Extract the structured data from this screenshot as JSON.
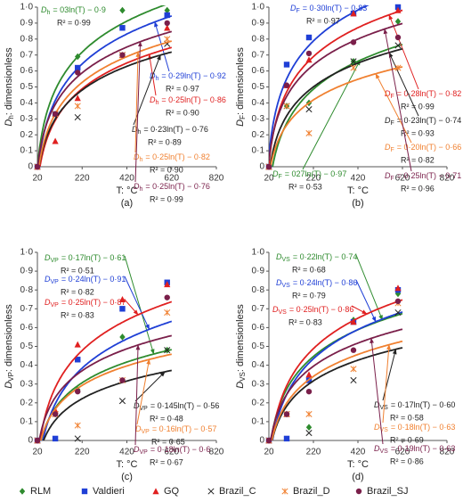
{
  "chart_data": [
    {
      "type": "scatter",
      "panel_label": "(a)",
      "xlabel": "T: °C",
      "ylabel_var": "D",
      "ylabel_sub": "h",
      "ylabel_rest": ": dimensionless",
      "xlim": [
        20,
        820
      ],
      "xticks": [
        20,
        220,
        420,
        620,
        820
      ],
      "ylim": [
        0,
        1
      ],
      "yticks": [
        0,
        {
          "value": 0.1,
          "label": "0·1"
        },
        {
          "value": 0.2,
          "label": "0·2"
        },
        {
          "value": 0.3,
          "label": "0·3"
        },
        {
          "value": 0.4,
          "label": "0·4"
        },
        {
          "value": 0.5,
          "label": "0·5"
        },
        {
          "value": 0.6,
          "label": "0·6"
        },
        {
          "value": 0.7,
          "label": "0·7"
        },
        {
          "value": 0.8,
          "label": "0·8"
        },
        {
          "value": 0.9,
          "label": "0·9"
        },
        {
          "value": 1,
          "label": "1·0"
        }
      ],
      "x": [
        20,
        100,
        200,
        400,
        600
      ],
      "series": [
        {
          "name": "RLM",
          "color": "#2e8b2e",
          "marker": "diamond",
          "values": [
            0,
            0.33,
            0.69,
            0.98,
            0.98
          ],
          "fit": {
            "slope": 0.3,
            "intercept": -0.9
          },
          "equation": "= 03ln(T) − 0·9",
          "r2": "R² = 0·99"
        },
        {
          "name": "Valdieri",
          "color": "#1f3fd6",
          "marker": "square",
          "values": [
            0,
            0.33,
            0.62,
            0.87,
            0.95
          ],
          "fit": {
            "slope": 0.29,
            "intercept": -0.92
          },
          "equation": "= 0·29ln(T) − 0·92",
          "r2": "R² = 0·97"
        },
        {
          "name": "GQ",
          "color": "#e02020",
          "marker": "triangle",
          "values": [
            0,
            0.16,
            0.43,
            0.7,
            0.87
          ],
          "fit": {
            "slope": 0.25,
            "intercept": -0.86
          },
          "equation": "= 0·25ln(T) − 0·86",
          "r2": "R² = 0·90"
        },
        {
          "name": "Brazil_C",
          "color": "#222222",
          "marker": "x",
          "values": [
            0,
            0.33,
            0.31,
            0.7,
            0.77
          ],
          "fit": {
            "slope": 0.23,
            "intercept": -0.76
          },
          "equation": "= 0·23ln(T) − 0·76",
          "r2": "R² = 0·89"
        },
        {
          "name": "Brazil_D",
          "color": "#f08030",
          "marker": "asterisk",
          "values": [
            0,
            0.33,
            0.38,
            0.7,
            0.8
          ],
          "fit": {
            "slope": 0.25,
            "intercept": -0.82
          },
          "equation": "= 0·25ln(T) − 0·82",
          "r2": "R² = 0·90"
        },
        {
          "name": "Brazil_SJ",
          "color": "#7a1f4a",
          "marker": "circle",
          "values": [
            0,
            0.33,
            0.59,
            0.7,
            0.9
          ],
          "fit": {
            "slope": 0.25,
            "intercept": -0.76
          },
          "equation": "= 0·25ln(T) − 0·76",
          "r2": "R² = 0·99"
        }
      ]
    },
    {
      "type": "scatter",
      "panel_label": "(b)",
      "xlabel": "T: °C",
      "ylabel_var": "D",
      "ylabel_sub": "F",
      "ylabel_rest": ": dimensionless",
      "xlim": [
        20,
        820
      ],
      "xticks": [
        20,
        220,
        420,
        620,
        820
      ],
      "ylim": [
        0,
        1
      ],
      "yticks": [
        0,
        {
          "value": 0.1,
          "label": "0·1"
        },
        {
          "value": 0.2,
          "label": "0·2"
        },
        {
          "value": 0.3,
          "label": "0·3"
        },
        {
          "value": 0.4,
          "label": "0·4"
        },
        {
          "value": 0.5,
          "label": "0·5"
        },
        {
          "value": 0.6,
          "label": "0·6"
        },
        {
          "value": 0.7,
          "label": "0·7"
        },
        {
          "value": 0.8,
          "label": "0·8"
        },
        {
          "value": 0.9,
          "label": "0·9"
        },
        {
          "value": 1,
          "label": "1·0"
        }
      ],
      "x": [
        20,
        100,
        200,
        400,
        600
      ],
      "series": [
        {
          "values": [
            0,
            0.38,
            0.4,
            0.66,
            0.91
          ],
          "fit": {
            "slope": 0.27,
            "intercept": -0.97
          },
          "equation": "= 027ln(T) − 0·97",
          "r2": "R² = 0·53"
        },
        {
          "values": [
            0,
            0.64,
            0.81,
            0.96,
            1
          ],
          "fit": {
            "slope": 0.3,
            "intercept": -0.83
          },
          "equation": "= 0·30ln(T) − 0·83",
          "r2": "R² = 0·97"
        },
        {
          "values": [
            0,
            0.51,
            0.67,
            0.96,
            0.98
          ],
          "fit": {
            "slope": 0.28,
            "intercept": -0.82
          },
          "equation": "= 0·28ln(T) − 0·82",
          "r2": "R² = 0·99"
        },
        {
          "values": [
            0,
            0.38,
            0.36,
            0.66,
            0.76
          ],
          "fit": {
            "slope": 0.23,
            "intercept": -0.74
          },
          "equation": "= 0·23ln(T) − 0·74",
          "r2": "R² = 0·93"
        },
        {
          "values": [
            0,
            0.38,
            0.21,
            0.62,
            0.62
          ],
          "fit": {
            "slope": 0.2,
            "intercept": -0.66
          },
          "equation": "= 0·20ln(T) − 0·66",
          "r2": "R² = 0·82"
        },
        {
          "values": [
            0,
            0.51,
            0.71,
            0.78,
            0.81
          ],
          "fit": {
            "slope": 0.25,
            "intercept": -0.71
          },
          "equation": "= 0·25ln(T) − 0·71",
          "r2": "R² = 0·96"
        }
      ]
    },
    {
      "type": "scatter",
      "panel_label": "(c)",
      "xlabel": "T: °C",
      "ylabel_var": "D",
      "ylabel_sub": "VP",
      "ylabel_rest": ": dimensionless",
      "xlim": [
        20,
        820
      ],
      "xticks": [
        20,
        220,
        420,
        620,
        820
      ],
      "ylim": [
        0,
        1
      ],
      "yticks": [
        0,
        {
          "value": 0.1,
          "label": "0·1"
        },
        {
          "value": 0.2,
          "label": "0·2"
        },
        {
          "value": 0.3,
          "label": "0·3"
        },
        {
          "value": 0.4,
          "label": "0·4"
        },
        {
          "value": 0.5,
          "label": "0·5"
        },
        {
          "value": 0.6,
          "label": "0·6"
        },
        {
          "value": 0.7,
          "label": "0·7"
        },
        {
          "value": 0.8,
          "label": "0·8"
        },
        {
          "value": 0.9,
          "label": "0·9"
        },
        {
          "value": 1,
          "label": "1·0"
        }
      ],
      "x": [
        20,
        100,
        200,
        400,
        600
      ],
      "series": [
        {
          "values": [
            0,
            0.14,
            0.27,
            0.55,
            0.48
          ],
          "fit": {
            "slope": 0.17,
            "intercept": -0.61
          },
          "equation": "= 0·17ln(T) − 0·61",
          "r2": "R² = 0·51"
        },
        {
          "values": [
            0,
            0.01,
            0.43,
            0.7,
            0.84
          ],
          "fit": {
            "slope": 0.24,
            "intercept": -0.91
          },
          "equation": "= 0·24ln(T) − 0·91",
          "r2": "R² = 0·82"
        },
        {
          "values": [
            0,
            0.16,
            0.51,
            0.75,
            0.83
          ],
          "fit": {
            "slope": 0.25,
            "intercept": -0.87
          },
          "equation": "= 0·25ln(T) − 0·87",
          "r2": "R² = 0·83"
        },
        {
          "values": [
            0,
            0.14,
            0.01,
            0.21,
            0.48
          ],
          "fit": {
            "slope": 0.145,
            "intercept": -0.56
          },
          "equation": "= 0·145ln(T) − 0·56",
          "r2": "R² = 0·48"
        },
        {
          "values": [
            0,
            0.14,
            0.08,
            0.32,
            0.68
          ],
          "fit": {
            "slope": 0.16,
            "intercept": -0.57
          },
          "equation": "= 0·16ln(T) − 0·57",
          "r2": "R² = 0·65"
        },
        {
          "values": [
            0,
            0.14,
            0.26,
            0.32,
            0.76
          ],
          "fit": {
            "slope": 0.18,
            "intercept": -0.6
          },
          "equation": "= 0·18ln(T) − 0·6",
          "r2": "R² = 0·67"
        }
      ]
    },
    {
      "type": "scatter",
      "panel_label": "(d)",
      "xlabel": "T: °C",
      "ylabel_var": "D",
      "ylabel_sub": "VS",
      "ylabel_rest": ": dimensionless",
      "xlim": [
        20,
        820
      ],
      "xticks": [
        20,
        220,
        420,
        620,
        820
      ],
      "ylim": [
        0,
        1
      ],
      "yticks": [
        0,
        {
          "value": 0.1,
          "label": "0·1"
        },
        {
          "value": 0.2,
          "label": "0·2"
        },
        {
          "value": 0.3,
          "label": "0·3"
        },
        {
          "value": 0.4,
          "label": "0·4"
        },
        {
          "value": 0.5,
          "label": "0·5"
        },
        {
          "value": 0.6,
          "label": "0·6"
        },
        {
          "value": 0.7,
          "label": "0·7"
        },
        {
          "value": 0.8,
          "label": "0·8"
        },
        {
          "value": 0.9,
          "label": "0·9"
        },
        {
          "value": 1,
          "label": "1·0"
        }
      ],
      "x": [
        20,
        100,
        200,
        400,
        600
      ],
      "series": [
        {
          "values": [
            0,
            0.14,
            0.07,
            0.64,
            0.78
          ],
          "fit": {
            "slope": 0.22,
            "intercept": -0.74
          },
          "equation": "= 0·22ln(T) − 0·74",
          "r2": "R² = 0·68"
        },
        {
          "values": [
            0,
            0.01,
            0.32,
            0.63,
            0.8
          ],
          "fit": {
            "slope": 0.24,
            "intercept": -0.86
          },
          "equation": "= 0·24ln(T) − 0·86",
          "r2": "R² = 0·79"
        },
        {
          "values": [
            0,
            0.14,
            0.35,
            0.63,
            0.81
          ],
          "fit": {
            "slope": 0.25,
            "intercept": -0.86
          },
          "equation": "= 0·25ln(T) − 0·86",
          "r2": "R² = 0·83"
        },
        {
          "values": [
            0,
            0.14,
            0.04,
            0.32,
            0.68
          ],
          "fit": {
            "slope": 0.17,
            "intercept": -0.6
          },
          "equation": "= 0·17ln(T) − 0·60",
          "r2": "R² = 0·58"
        },
        {
          "values": [
            0,
            0.14,
            0.14,
            0.38,
            0.73
          ],
          "fit": {
            "slope": 0.18,
            "intercept": -0.63
          },
          "equation": "= 0·18ln(T) − 0·63",
          "r2": "R² = 0·69"
        },
        {
          "values": [
            0,
            0.14,
            0.26,
            0.48,
            0.74
          ],
          "fit": {
            "slope": 0.19,
            "intercept": -0.63
          },
          "equation": "= 0·19ln(T) − 0·63",
          "r2": "R² = 0·86"
        }
      ]
    }
  ]
}
